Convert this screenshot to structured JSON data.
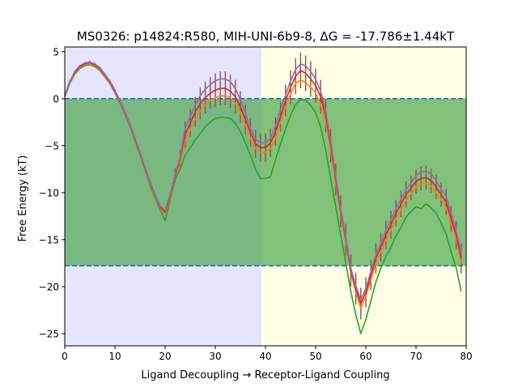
{
  "chart_data": {
    "type": "line",
    "title": "MS0326: p14824:R580, MIH-UNI-6b9-8, ΔG = -17.786±1.44kT",
    "xlabel": "Ligand Decoupling → Receptor-Ligand Coupling",
    "ylabel": "Free Energy (kT)",
    "xlim": [
      0,
      80
    ],
    "ylim": [
      -26.3,
      5.5
    ],
    "xticks": [
      0,
      10,
      20,
      30,
      40,
      50,
      60,
      70,
      80
    ],
    "yticks": [
      5,
      0,
      -5,
      -10,
      -15,
      -20,
      -25
    ],
    "background_regions": [
      {
        "x0": 0,
        "x1": 39.2,
        "color": "#e5e5ff"
      },
      {
        "x0": 39.2,
        "x1": 80,
        "color": "#ffffe5"
      }
    ],
    "band": {
      "y0": -17.786,
      "y1": 0,
      "color": "#4ca64c",
      "opacity": 0.7
    },
    "hlines": [
      0,
      -17.786
    ],
    "hline_color": "#1f77b4",
    "grid": false,
    "series": [
      {
        "color": "#2ca02c",
        "x": [
          0,
          1,
          2,
          3,
          4,
          5,
          6,
          7,
          8,
          9,
          10,
          11,
          12,
          13,
          14,
          15,
          16,
          17,
          18,
          19,
          20,
          21,
          22,
          23,
          24,
          25,
          26,
          27,
          28,
          29,
          30,
          31,
          32,
          33,
          34,
          35,
          36,
          37,
          38,
          39,
          40,
          41,
          42,
          43,
          44,
          45,
          46,
          47,
          48,
          49,
          50,
          51,
          52,
          53,
          54,
          55,
          56,
          57,
          58,
          59,
          60,
          61,
          62,
          63,
          64,
          65,
          66,
          67,
          68,
          69,
          70,
          71,
          72,
          73,
          74,
          75,
          76,
          77,
          78,
          79
        ],
        "y": [
          0.2,
          1.6,
          2.6,
          3.2,
          3.5,
          3.6,
          3.4,
          3.0,
          2.3,
          1.6,
          0.6,
          -0.5,
          -1.7,
          -3.0,
          -4.5,
          -6.0,
          -7.6,
          -9.2,
          -10.6,
          -11.8,
          -13.0,
          -10.8,
          -8.6,
          -7.5,
          -6.0,
          -5.2,
          -4.4,
          -3.7,
          -3.0,
          -2.5,
          -2.1,
          -2.0,
          -2.0,
          -2.1,
          -2.6,
          -3.5,
          -4.7,
          -6.0,
          -7.5,
          -8.5,
          -8.5,
          -8.3,
          -6.5,
          -4.8,
          -3.2,
          -1.8,
          -0.6,
          -0.1,
          -0.2,
          -0.7,
          -1.5,
          -3.0,
          -5.5,
          -8.5,
          -11.5,
          -14.5,
          -17.5,
          -20.5,
          -23.0,
          -25.0,
          -23.5,
          -21.5,
          -19.5,
          -18.0,
          -16.8,
          -15.8,
          -14.6,
          -13.7,
          -12.6,
          -12.0,
          -11.5,
          -11.7,
          -11.2,
          -11.6,
          -12.2,
          -13.2,
          -14.4,
          -16.3,
          -18.0,
          -20.5
        ]
      },
      {
        "color": "#ff7f0e",
        "x": [
          0,
          1,
          2,
          3,
          4,
          5,
          6,
          7,
          8,
          9,
          10,
          11,
          12,
          13,
          14,
          15,
          16,
          17,
          18,
          19,
          20,
          21,
          22,
          23,
          24,
          25,
          26,
          27,
          28,
          29,
          30,
          31,
          32,
          33,
          34,
          35,
          36,
          37,
          38,
          39,
          40,
          41,
          42,
          43,
          44,
          45,
          46,
          47,
          48,
          49,
          50,
          51,
          52,
          53,
          54,
          55,
          56,
          57,
          58,
          59,
          60,
          61,
          62,
          63,
          64,
          65,
          66,
          67,
          68,
          69,
          70,
          71,
          72,
          73,
          74,
          75,
          76,
          77,
          78,
          79
        ],
        "y": [
          0.3,
          1.7,
          2.7,
          3.3,
          3.6,
          3.7,
          3.5,
          3.1,
          2.4,
          1.7,
          0.7,
          -0.4,
          -1.6,
          -2.9,
          -4.4,
          -5.9,
          -7.5,
          -9.0,
          -10.4,
          -11.6,
          -12.3,
          -10.6,
          -8.4,
          -6.8,
          -4.4,
          -3.3,
          -2.2,
          -1.3,
          -0.7,
          -0.2,
          0.1,
          0.3,
          0.3,
          0.1,
          -0.5,
          -1.5,
          -2.8,
          -4.2,
          -5.3,
          -5.7,
          -5.7,
          -5.3,
          -4.2,
          -2.5,
          -0.9,
          0.5,
          1.6,
          2.0,
          1.7,
          1.2,
          0.6,
          -0.6,
          -2.5,
          -5.5,
          -9.0,
          -12.3,
          -15.3,
          -18.5,
          -20.6,
          -22.3,
          -21.0,
          -19.3,
          -17.5,
          -16.3,
          -15.0,
          -14.0,
          -12.8,
          -11.8,
          -10.8,
          -10.1,
          -9.4,
          -9.1,
          -9.0,
          -9.3,
          -10.0,
          -10.7,
          -11.6,
          -13.3,
          -15.0,
          -17.5
        ]
      },
      {
        "color": "#d62728",
        "x": [
          0,
          1,
          2,
          3,
          4,
          5,
          6,
          7,
          8,
          9,
          10,
          11,
          12,
          13,
          14,
          15,
          16,
          17,
          18,
          19,
          20,
          21,
          22,
          23,
          24,
          25,
          26,
          27,
          28,
          29,
          30,
          31,
          32,
          33,
          34,
          35,
          36,
          37,
          38,
          39,
          40,
          41,
          42,
          43,
          44,
          45,
          46,
          47,
          48,
          49,
          50,
          51,
          52,
          53,
          54,
          55,
          56,
          57,
          58,
          59,
          60,
          61,
          62,
          63,
          64,
          65,
          66,
          67,
          68,
          69,
          70,
          71,
          72,
          73,
          74,
          75,
          76,
          77,
          78,
          79
        ],
        "y": [
          0.35,
          1.8,
          2.8,
          3.4,
          3.7,
          3.85,
          3.6,
          3.2,
          2.5,
          1.8,
          0.8,
          -0.3,
          -1.5,
          -2.8,
          -4.3,
          -5.8,
          -7.4,
          -8.9,
          -10.3,
          -11.5,
          -12.1,
          -10.4,
          -8.2,
          -6.4,
          -3.8,
          -2.6,
          -1.4,
          -0.5,
          0.1,
          0.6,
          0.9,
          1.1,
          1.1,
          0.8,
          0.2,
          -0.9,
          -2.2,
          -3.6,
          -4.8,
          -5.2,
          -5.2,
          -4.7,
          -3.5,
          -1.9,
          -0.2,
          1.2,
          2.4,
          3.0,
          2.7,
          2.1,
          1.4,
          0.2,
          -1.8,
          -5.0,
          -8.6,
          -12.0,
          -15.0,
          -18.3,
          -20.2,
          -21.8,
          -20.6,
          -18.8,
          -17.0,
          -15.8,
          -14.5,
          -13.4,
          -12.2,
          -11.2,
          -10.2,
          -9.5,
          -8.8,
          -8.5,
          -8.4,
          -8.7,
          -9.4,
          -10.2,
          -11.0,
          -12.8,
          -14.5,
          -17.0
        ]
      },
      {
        "color": "#9467bd",
        "x": [
          0,
          1,
          2,
          3,
          4,
          5,
          6,
          7,
          8,
          9,
          10,
          11,
          12,
          13,
          14,
          15,
          16,
          17,
          18,
          19,
          20,
          21,
          22,
          23,
          24,
          25,
          26,
          27,
          28,
          29,
          30,
          31,
          32,
          33,
          34,
          35,
          36,
          37,
          38,
          39,
          40,
          41,
          42,
          43,
          44,
          45,
          46,
          47,
          48,
          49,
          50,
          51,
          52,
          53,
          54,
          55,
          56,
          57,
          58,
          59,
          60,
          61,
          62,
          63,
          64,
          65,
          66,
          67,
          68,
          69,
          70,
          71,
          72,
          73,
          74,
          75,
          76,
          77,
          78,
          79
        ],
        "y": [
          0.4,
          1.8,
          2.9,
          3.5,
          3.8,
          3.9,
          3.7,
          3.3,
          2.6,
          1.9,
          0.9,
          -0.2,
          -1.4,
          -2.7,
          -4.2,
          -5.7,
          -7.3,
          -8.8,
          -10.2,
          -11.4,
          -11.9,
          -10.2,
          -8.0,
          -6.2,
          -3.1,
          -1.9,
          -0.6,
          0.3,
          1.0,
          1.5,
          1.9,
          2.1,
          2.1,
          1.8,
          1.1,
          -0.1,
          -1.6,
          -3.1,
          -4.3,
          -4.7,
          -4.7,
          -4.2,
          -2.9,
          -1.2,
          0.4,
          1.9,
          3.1,
          3.7,
          3.5,
          2.9,
          2.1,
          0.8,
          -1.3,
          -4.5,
          -8.2,
          -11.7,
          -14.7,
          -18.0,
          -19.9,
          -21.4,
          -20.2,
          -18.4,
          -16.6,
          -15.4,
          -14.0,
          -12.9,
          -11.7,
          -10.7,
          -9.7,
          -9.0,
          -8.2,
          -7.8,
          -7.7,
          -8.0,
          -8.7,
          -9.6,
          -10.4,
          -12.2,
          -14.0,
          -16.5
        ]
      }
    ],
    "error_series_index": 2,
    "error_halfwidth": [
      0,
      0.2,
      0.2,
      0.2,
      0.2,
      0.2,
      0.2,
      0.2,
      0.2,
      0.2,
      0.2,
      0.2,
      0.2,
      0.2,
      0.2,
      0.2,
      0.2,
      0.2,
      0.2,
      0.2,
      0.3,
      0.5,
      0.8,
      1.0,
      1.4,
      1.5,
      1.6,
      1.7,
      1.7,
      1.7,
      1.8,
      1.8,
      1.8,
      1.8,
      1.8,
      1.7,
      1.6,
      1.5,
      1.5,
      1.5,
      1.5,
      1.5,
      1.5,
      1.6,
      1.7,
      1.8,
      1.9,
      1.9,
      1.9,
      1.9,
      1.8,
      1.8,
      1.8,
      1.8,
      1.7,
      1.7,
      1.7,
      1.7,
      1.7,
      1.7,
      1.6,
      1.6,
      1.6,
      1.5,
      1.5,
      1.5,
      1.4,
      1.4,
      1.4,
      1.3,
      1.3,
      1.3,
      1.3,
      1.3,
      1.3,
      1.3,
      1.4,
      1.4,
      1.5,
      1.6
    ],
    "error_color": "#8c564b"
  }
}
